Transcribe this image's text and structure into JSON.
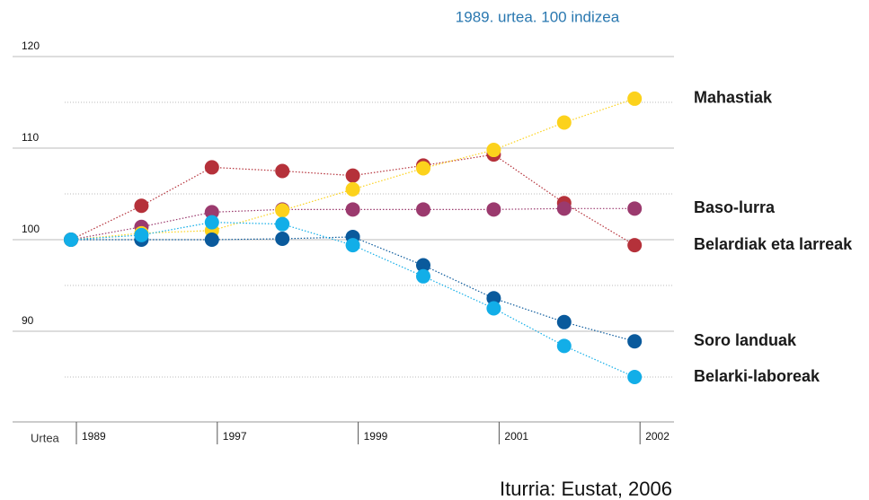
{
  "chart_data": {
    "type": "line",
    "subtitle": "1989. urtea. 100 indizea",
    "source": "Iturria: Eustat, 2006",
    "x_label": "Urtea",
    "categories": [
      "1989",
      null,
      "1997",
      null,
      "1999",
      null,
      "2001",
      null,
      "2002"
    ],
    "ylim": [
      80,
      120
    ],
    "yticks": [
      90,
      100,
      110,
      120
    ],
    "minor_yticks": [
      85,
      95,
      105,
      115
    ],
    "grid": true,
    "series": [
      {
        "name": "Belardiak eta larreak",
        "color": "#b5313a",
        "values": [
          100,
          103.7,
          107.9,
          107.5,
          107,
          108.1,
          109.3,
          104,
          99.4
        ]
      },
      {
        "name": "Baso-lurra",
        "color": "#9b3a6e",
        "values": [
          100,
          101.4,
          103,
          103.3,
          103.3,
          103.3,
          103.3,
          103.4,
          103.4
        ]
      },
      {
        "name": "Mahastiak",
        "color": "#fcd21c",
        "values": [
          100,
          100.7,
          101,
          103.2,
          105.5,
          107.8,
          109.8,
          112.8,
          115.4
        ]
      },
      {
        "name": "Soro landuak",
        "color": "#0a5a9c",
        "values": [
          100,
          100,
          100,
          100.1,
          100.3,
          97.2,
          93.6,
          91,
          88.9
        ]
      },
      {
        "name": "Belarki-laboreak",
        "color": "#12aee8",
        "values": [
          100,
          100.5,
          101.9,
          101.7,
          99.4,
          96,
          92.5,
          88.4,
          85
        ]
      }
    ]
  }
}
